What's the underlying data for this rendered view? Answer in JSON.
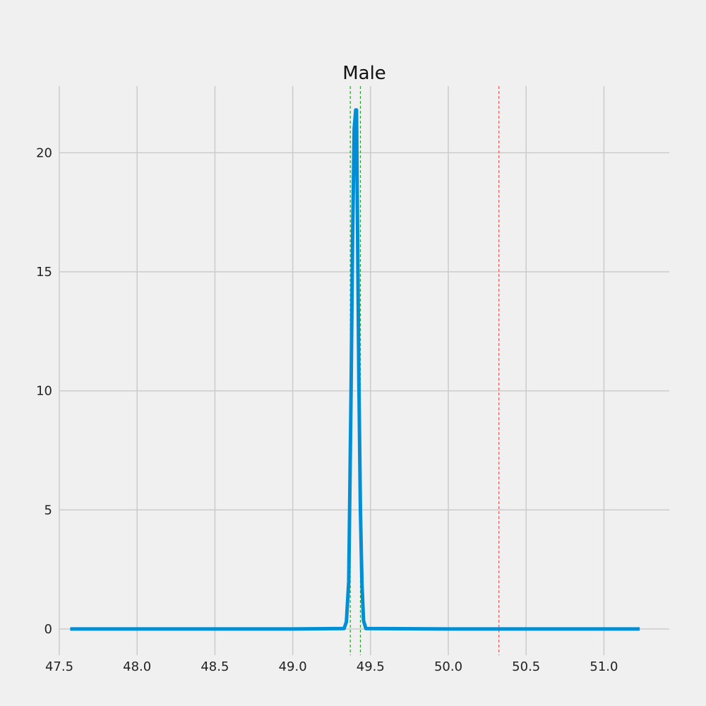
{
  "chart_data": {
    "type": "line",
    "title": "Male",
    "xlabel": "",
    "ylabel": "",
    "xlim": [
      47.5,
      51.42
    ],
    "ylim": [
      -1.1,
      22.8
    ],
    "grid": true,
    "xticks": [
      {
        "value": 47.5,
        "label": "47.5"
      },
      {
        "value": 48.0,
        "label": "48.0"
      },
      {
        "value": 48.5,
        "label": "48.5"
      },
      {
        "value": 49.0,
        "label": "49.0"
      },
      {
        "value": 49.5,
        "label": "49.5"
      },
      {
        "value": 50.0,
        "label": "50.0"
      },
      {
        "value": 50.5,
        "label": "50.5"
      },
      {
        "value": 51.0,
        "label": "51.0"
      }
    ],
    "yticks": [
      {
        "value": 0,
        "label": "0"
      },
      {
        "value": 5,
        "label": "5"
      },
      {
        "value": 10,
        "label": "10"
      },
      {
        "value": 15,
        "label": "15"
      },
      {
        "value": 20,
        "label": "20"
      }
    ],
    "series": [
      {
        "color": "#008fd5",
        "points": [
          [
            47.57,
            0
          ],
          [
            49.0,
            0
          ],
          [
            49.33,
            0.02
          ],
          [
            49.345,
            0.3
          ],
          [
            49.36,
            2.0
          ],
          [
            49.375,
            10.0
          ],
          [
            49.385,
            16.5
          ],
          [
            49.395,
            21.0
          ],
          [
            49.405,
            21.8
          ],
          [
            49.41,
            21.8
          ],
          [
            49.415,
            18.0
          ],
          [
            49.425,
            10.5
          ],
          [
            49.435,
            5.0
          ],
          [
            49.445,
            1.9
          ],
          [
            49.455,
            0.35
          ],
          [
            49.47,
            0.02
          ],
          [
            50.0,
            0
          ],
          [
            51.23,
            0
          ]
        ]
      }
    ],
    "reference_lines": [
      {
        "x": 49.37,
        "color": "#2ca02c",
        "style": "dashed"
      },
      {
        "x": 49.435,
        "color": "#2ca02c",
        "style": "dashed"
      },
      {
        "x": 50.325,
        "color": "#e05a5a",
        "style": "dashed"
      }
    ]
  }
}
